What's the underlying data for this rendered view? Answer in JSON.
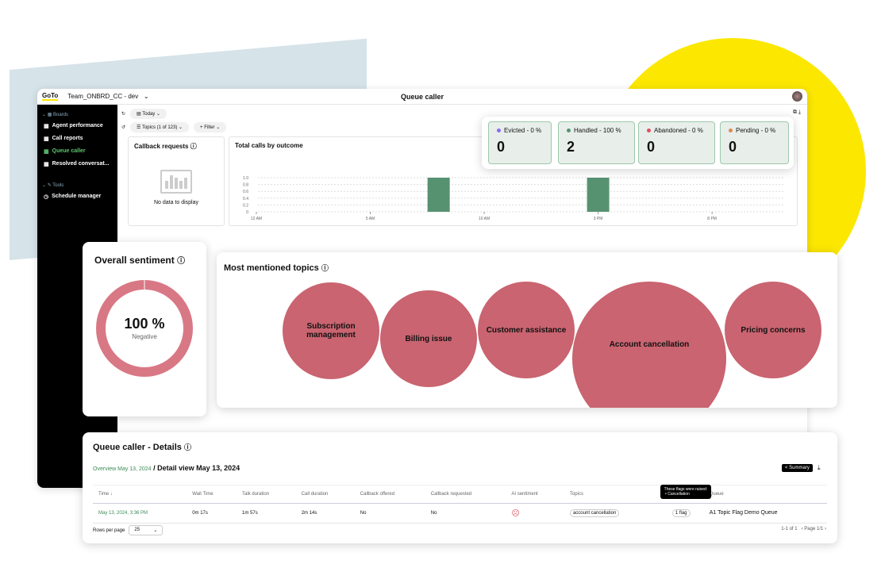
{
  "app": {
    "logo": "GoTo",
    "workspace": "Team_ONBRD_CC - dev",
    "title": "Queue caller"
  },
  "sidebar": {
    "boards_label": "Boards",
    "items": [
      {
        "label": "Agent performance"
      },
      {
        "label": "Call reports"
      },
      {
        "label": "Queue caller",
        "active": true
      },
      {
        "label": "Resolved conversat..."
      }
    ],
    "tools_label": "Tools",
    "tools": [
      {
        "label": "Schedule manager"
      }
    ]
  },
  "toolbar": {
    "date": "Today",
    "topics": "Topics (1 of 123)",
    "filter": "Filter"
  },
  "callback": {
    "title": "Callback requests",
    "empty": "No data to display"
  },
  "chart_data": {
    "type": "bar",
    "title": "Total calls by outcome",
    "x_ticks": [
      "12 AM",
      "5 AM",
      "10 AM",
      "3 PM",
      "8 PM"
    ],
    "y_ticks": [
      "0",
      "0.2",
      "0.4",
      "0.6",
      "0.8",
      "1.0"
    ],
    "ylim": [
      0,
      1
    ],
    "bars": [
      {
        "x": "8 AM",
        "value": 1
      },
      {
        "x": "3 PM",
        "value": 1
      }
    ],
    "color": "#579270",
    "grid": true
  },
  "stats": [
    {
      "label": "Evicted - 0 %",
      "value": "0",
      "color": "#8a6cf0"
    },
    {
      "label": "Handled - 100 %",
      "value": "2",
      "color": "#579270"
    },
    {
      "label": "Abandoned - 0 %",
      "value": "0",
      "color": "#e0505e"
    },
    {
      "label": "Pending - 0 %",
      "value": "0",
      "color": "#e08a50"
    }
  ],
  "sentiment": {
    "title": "Overall sentiment",
    "value": "100 %",
    "label": "Negative",
    "negative_pct": 100,
    "color": "#d97885"
  },
  "topics": {
    "title": "Most mentioned topics",
    "items": [
      "Subscription management",
      "Billing issue",
      "Customer assistance",
      "Account cancellation",
      "Pricing concerns"
    ]
  },
  "details": {
    "title": "Queue caller - Details",
    "breadcrumb_link": "Overview May 13, 2024",
    "breadcrumb_current": "/ Detail view May 13, 2024",
    "summary_button": "< Summary",
    "columns": [
      "Time ↓",
      "Wait Time",
      "Talk duration",
      "Call duration",
      "Callback offered",
      "Callback requested",
      "AI sentiment",
      "Topics",
      "",
      "Queue"
    ],
    "rows": [
      {
        "time": "May 13, 2024, 3:36 PM",
        "wait": "0m 17s",
        "talk": "1m 57s",
        "call": "2m 14s",
        "offered": "No",
        "requested": "No",
        "sentiment": "negative",
        "topic": "account cancellation",
        "flag": "1 flag",
        "queue": "A1 Topic Flag Demo Queue"
      }
    ],
    "tooltip_title": "These flags were raised:",
    "tooltip_item": "Cancellation",
    "rows_per_page_label": "Rows per page",
    "rows_per_page": "25",
    "range": "1-1 of 1",
    "page": "Page 1/1"
  }
}
